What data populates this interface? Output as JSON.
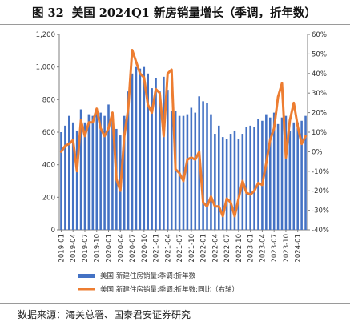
{
  "header": {
    "figure_label": "图 32",
    "title": "美国 2024Q1 新房销量增长（季调，折年数）"
  },
  "source": "数据来源：海关总署、国泰君安证券研究",
  "colors": {
    "bar": "#4472C4",
    "line": "#ED7D31",
    "axis": "#7f7f7f"
  },
  "chart_data": {
    "type": "bar+line",
    "x": [
      "2019-01",
      "2019-02",
      "2019-03",
      "2019-04",
      "2019-05",
      "2019-06",
      "2019-07",
      "2019-08",
      "2019-09",
      "2019-10",
      "2019-11",
      "2019-12",
      "2020-01",
      "2020-02",
      "2020-03",
      "2020-04",
      "2020-05",
      "2020-06",
      "2020-07",
      "2020-08",
      "2020-09",
      "2020-10",
      "2020-11",
      "2020-12",
      "2021-01",
      "2021-02",
      "2021-03",
      "2021-04",
      "2021-05",
      "2021-06",
      "2021-07",
      "2021-08",
      "2021-09",
      "2021-10",
      "2021-11",
      "2021-12",
      "2022-01",
      "2022-02",
      "2022-03",
      "2022-04",
      "2022-05",
      "2022-06",
      "2022-07",
      "2022-08",
      "2022-09",
      "2022-10",
      "2022-11",
      "2022-12",
      "2023-01",
      "2023-02",
      "2023-03",
      "2023-04",
      "2023-05",
      "2023-06",
      "2023-07",
      "2023-08",
      "2023-09",
      "2023-10",
      "2023-11",
      "2023-12",
      "2024-01",
      "2024-02",
      "2024-03"
    ],
    "x_tick_labels": [
      "2019-01",
      "2019-04",
      "2019-07",
      "2019-10",
      "2020-01",
      "2020-04",
      "2020-07",
      "2020-10",
      "2021-01",
      "2021-04",
      "2021-07",
      "2021-10",
      "2022-01",
      "2022-04",
      "2022-07",
      "2022-10",
      "2023-01",
      "2023-04",
      "2023-07",
      "2023-10",
      "2024-01"
    ],
    "series": [
      {
        "name": "美国:新建住房销量:季调:折年数",
        "axis": "left",
        "kind": "bar",
        "values": [
          600,
          640,
          700,
          660,
          610,
          740,
          660,
          710,
          700,
          730,
          720,
          700,
          770,
          720,
          620,
          580,
          700,
          850,
          960,
          1000,
          990,
          1000,
          960,
          870,
          930,
          850,
          940,
          860,
          730,
          730,
          700,
          700,
          710,
          750,
          720,
          820,
          790,
          780,
          710,
          590,
          640,
          570,
          560,
          590,
          610,
          560,
          590,
          630,
          640,
          630,
          680,
          670,
          710,
          690,
          720,
          650,
          690,
          700,
          610,
          660,
          660,
          670,
          700
        ]
      },
      {
        "name": "美国:新建住房销量:季调:折年数:同比（右轴）",
        "axis": "right",
        "kind": "line",
        "values": [
          0,
          3,
          4,
          6,
          -10,
          16,
          8,
          15,
          15,
          22,
          12,
          8,
          12,
          20,
          -14,
          -20,
          8,
          22,
          52,
          46,
          40,
          38,
          24,
          20,
          32,
          30,
          8,
          40,
          42,
          -9,
          -11,
          -15,
          -4,
          -3,
          -4,
          0,
          -26,
          -28,
          -23,
          -28,
          -28,
          -33,
          -24,
          -26,
          -33,
          -24,
          -15,
          -21,
          -22,
          -20,
          -16,
          -17,
          -6,
          6,
          12,
          28,
          35,
          -3,
          16,
          25,
          13,
          4,
          8
        ]
      }
    ],
    "y_left": {
      "min": 0,
      "max": 1200,
      "ticks": [
        0,
        200,
        400,
        600,
        800,
        1000,
        1200
      ],
      "tick_labels": [
        "0",
        "200",
        "400",
        "600",
        "800",
        "1,000",
        "1,200"
      ]
    },
    "y_right": {
      "min": -40,
      "max": 60,
      "ticks": [
        -40,
        -30,
        -20,
        -10,
        0,
        10,
        20,
        30,
        40,
        50,
        60
      ],
      "tick_labels": [
        "-40%",
        "-30%",
        "-20%",
        "-10%",
        "0%",
        "10%",
        "20%",
        "30%",
        "40%",
        "50%",
        "60%"
      ]
    },
    "legend_position": "bottom",
    "grid": false
  }
}
